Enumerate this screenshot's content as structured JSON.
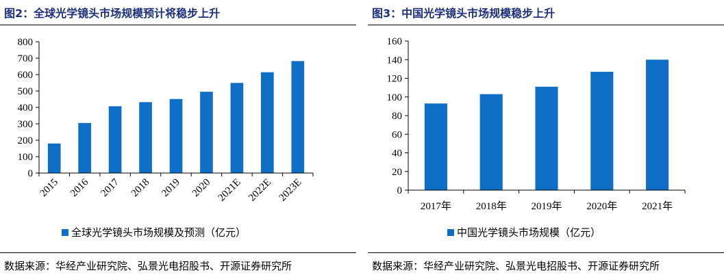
{
  "left": {
    "title": "图2：全球光学镜头市场规模预计将稳步上升",
    "source": "数据来源：华经产业研究院、弘景光电招股书、开源证券研究所",
    "chart_data": {
      "type": "bar",
      "categories": [
        "2015",
        "2016",
        "2017",
        "2018",
        "2019",
        "2020",
        "2021E",
        "2022E",
        "2023E"
      ],
      "series": [
        {
          "name": "全球光学镜头市场规模及预测（亿元）",
          "values": [
            180,
            305,
            407,
            432,
            451,
            495,
            549,
            614,
            682
          ]
        }
      ],
      "ylim": [
        0,
        800
      ],
      "yticks": [
        0,
        100,
        200,
        300,
        400,
        500,
        600,
        700,
        800
      ],
      "rotated_xlabels": true,
      "color": "#0f6fc6",
      "legend": "bottom",
      "grid": false
    }
  },
  "right": {
    "title": "图3：中国光学镜头市场规模稳步上升",
    "source": "数据来源：华经产业研究院、弘景光电招股书、开源证券研究所",
    "chart_data": {
      "type": "bar",
      "categories": [
        "2017年",
        "2018年",
        "2019年",
        "2020年",
        "2021年"
      ],
      "series": [
        {
          "name": "中国光学镜头市场规模（亿元）",
          "values": [
            93,
            103,
            111,
            127,
            140
          ]
        }
      ],
      "ylim": [
        0,
        160
      ],
      "yticks": [
        0,
        20,
        40,
        60,
        80,
        100,
        120,
        140,
        160
      ],
      "rotated_xlabels": false,
      "color": "#0f6fc6",
      "legend": "bottom",
      "grid": false
    }
  }
}
